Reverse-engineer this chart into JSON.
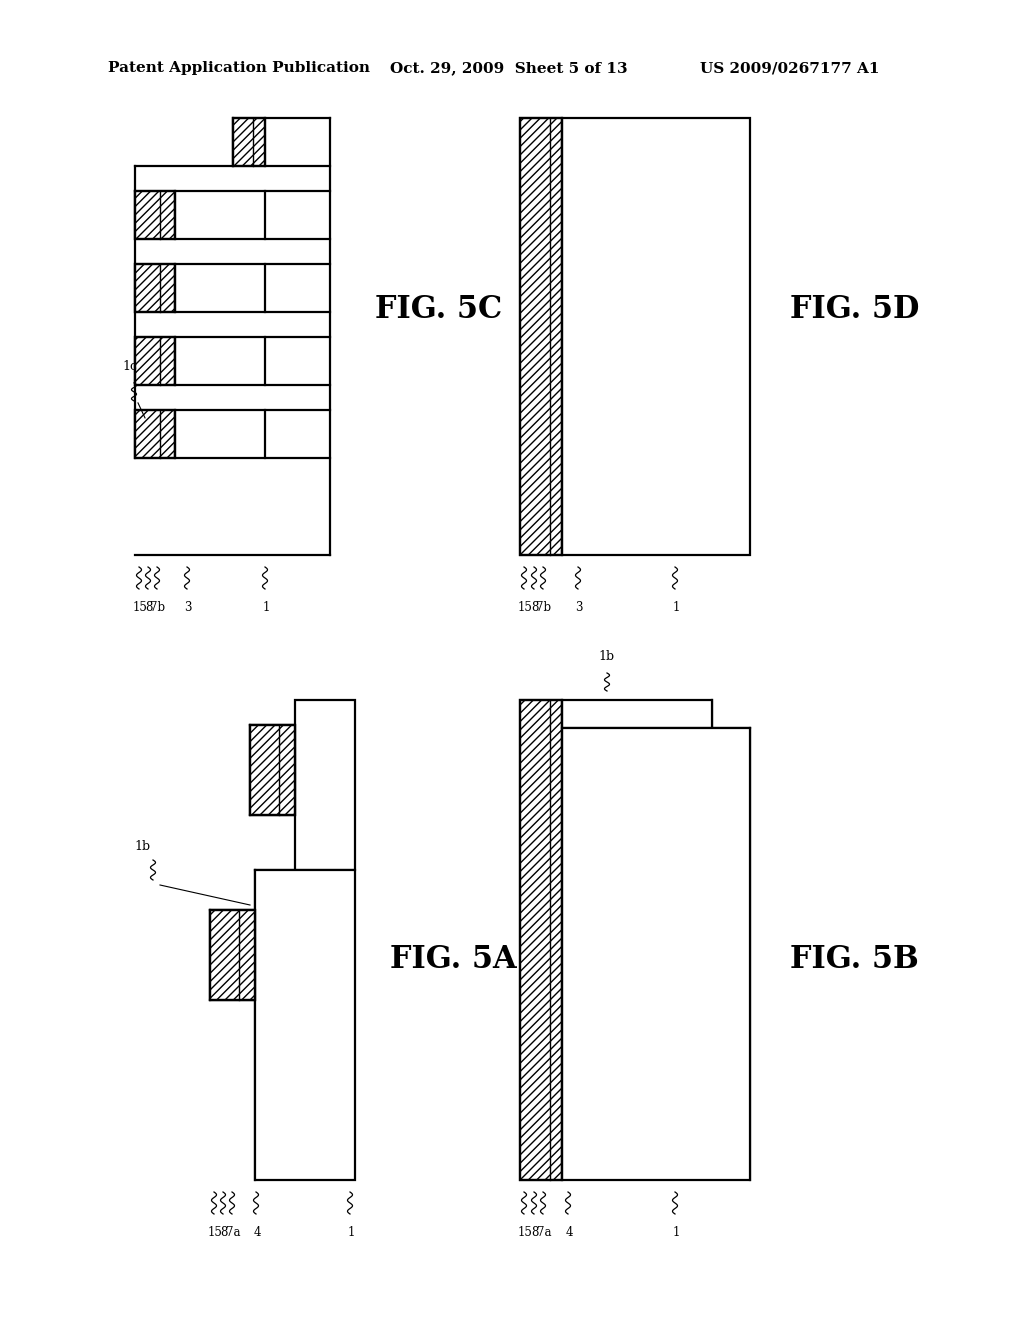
{
  "background_color": "#ffffff",
  "header_left": "Patent Application Publication",
  "header_mid": "Oct. 29, 2009  Sheet 5 of 13",
  "header_right": "US 2009/0267177 A1",
  "fig5c_label": "FIG. 5C",
  "fig5d_label": "FIG. 5D",
  "fig5a_label": "FIG. 5A",
  "fig5b_label": "FIG. 5B",
  "lw": 1.6
}
